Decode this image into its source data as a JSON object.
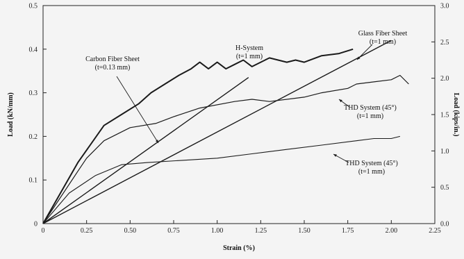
{
  "chart_data": {
    "type": "line",
    "xlabel": "Strain (%)",
    "ylabel": "Load (kN/mm)",
    "y2label": "Load (kips/in.)",
    "xlim": [
      0,
      2.25
    ],
    "ylim": [
      0,
      0.5
    ],
    "y2lim": [
      0,
      3.0
    ],
    "x_ticks": [
      "0",
      "0.25",
      "0.50",
      "0.75",
      "1.00",
      "1.25",
      "1.50",
      "1.75",
      "2.00",
      "2.25"
    ],
    "y_ticks": [
      "0",
      "0.1",
      "0.2",
      "0.3",
      "0.4",
      "0.5"
    ],
    "y2_ticks": [
      "0.0",
      "0.5",
      "1.0",
      "1.5",
      "2.0",
      "2.5",
      "3.0"
    ],
    "grid": false,
    "series": [
      {
        "name": "Glass Fiber Sheet (t=1 mm)",
        "x": [
          0,
          2.0
        ],
        "y": [
          0,
          0.42
        ]
      },
      {
        "name": "Carbon Fiber Sheet (t=0.13 mm)",
        "x": [
          0,
          1.18
        ],
        "y": [
          0,
          0.335
        ]
      },
      {
        "name": "H-System (t=1 mm)",
        "x": [
          0,
          0.2,
          0.35,
          0.45,
          0.55,
          0.62,
          0.7,
          0.78,
          0.85,
          0.9,
          0.95,
          1.0,
          1.05,
          1.1,
          1.15,
          1.2,
          1.25,
          1.3,
          1.4,
          1.45,
          1.5,
          1.6,
          1.7,
          1.78
        ],
        "y": [
          0,
          0.14,
          0.225,
          0.25,
          0.275,
          0.3,
          0.32,
          0.34,
          0.355,
          0.37,
          0.355,
          0.37,
          0.355,
          0.365,
          0.375,
          0.36,
          0.37,
          0.38,
          0.37,
          0.375,
          0.37,
          0.385,
          0.39,
          0.4
        ]
      },
      {
        "name": "THD System (45°) (t=1 mm)",
        "x": [
          0,
          0.2,
          0.25,
          0.35,
          0.5,
          0.65,
          0.75,
          0.9,
          1.1,
          1.2,
          1.3,
          1.5,
          1.6,
          1.75,
          1.8,
          1.9,
          2.0,
          2.05,
          2.1
        ],
        "y": [
          0,
          0.12,
          0.15,
          0.19,
          0.22,
          0.23,
          0.245,
          0.265,
          0.28,
          0.285,
          0.28,
          0.29,
          0.3,
          0.31,
          0.32,
          0.325,
          0.33,
          0.34,
          0.32
        ]
      },
      {
        "name": "THD System (45°) (t=1 mm)",
        "x": [
          0,
          0.15,
          0.3,
          0.45,
          0.6,
          0.8,
          1.0,
          1.2,
          1.4,
          1.6,
          1.8,
          1.9,
          2.0,
          2.05
        ],
        "y": [
          0,
          0.07,
          0.11,
          0.135,
          0.14,
          0.145,
          0.15,
          0.16,
          0.17,
          0.18,
          0.19,
          0.195,
          0.195,
          0.2
        ]
      }
    ],
    "annotations": [
      {
        "lines": [
          "Glass Fiber Sheet",
          "(t=1 mm)"
        ]
      },
      {
        "lines": [
          "H-System",
          "(t=1 mm)"
        ]
      },
      {
        "lines": [
          "Carbon Fiber Sheet",
          "(t=0.13 mm)"
        ]
      },
      {
        "lines": [
          "THD System (45°)",
          "(t=1 mm)"
        ]
      },
      {
        "lines": [
          "THD System (45°)",
          "(t=1 mm)"
        ]
      }
    ]
  }
}
